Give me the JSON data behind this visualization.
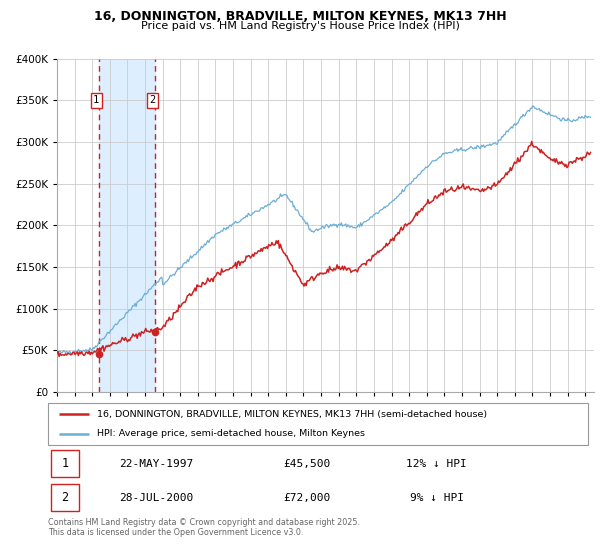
{
  "title": "16, DONNINGTON, BRADVILLE, MILTON KEYNES, MK13 7HH",
  "subtitle": "Price paid vs. HM Land Registry's House Price Index (HPI)",
  "legend_line1": "16, DONNINGTON, BRADVILLE, MILTON KEYNES, MK13 7HH (semi-detached house)",
  "legend_line2": "HPI: Average price, semi-detached house, Milton Keynes",
  "footer": "Contains HM Land Registry data © Crown copyright and database right 2025.\nThis data is licensed under the Open Government Licence v3.0.",
  "sale1_date": "22-MAY-1997",
  "sale1_price": "£45,500",
  "sale1_hpi": "12% ↓ HPI",
  "sale1_year": 1997.38,
  "sale1_value": 45500,
  "sale2_date": "28-JUL-2000",
  "sale2_price": "£72,000",
  "sale2_hpi": "9% ↓ HPI",
  "sale2_year": 2000.56,
  "sale2_value": 72000,
  "hpi_color": "#6baed6",
  "price_color": "#cc2222",
  "shade_color": "#ddeeff",
  "grid_color": "#cccccc",
  "bg_color": "#ffffff",
  "ylim": [
    0,
    400000
  ],
  "yticks": [
    0,
    50000,
    100000,
    150000,
    200000,
    250000,
    300000,
    350000,
    400000
  ],
  "xlim_start": 1995.0,
  "xlim_end": 2025.5
}
